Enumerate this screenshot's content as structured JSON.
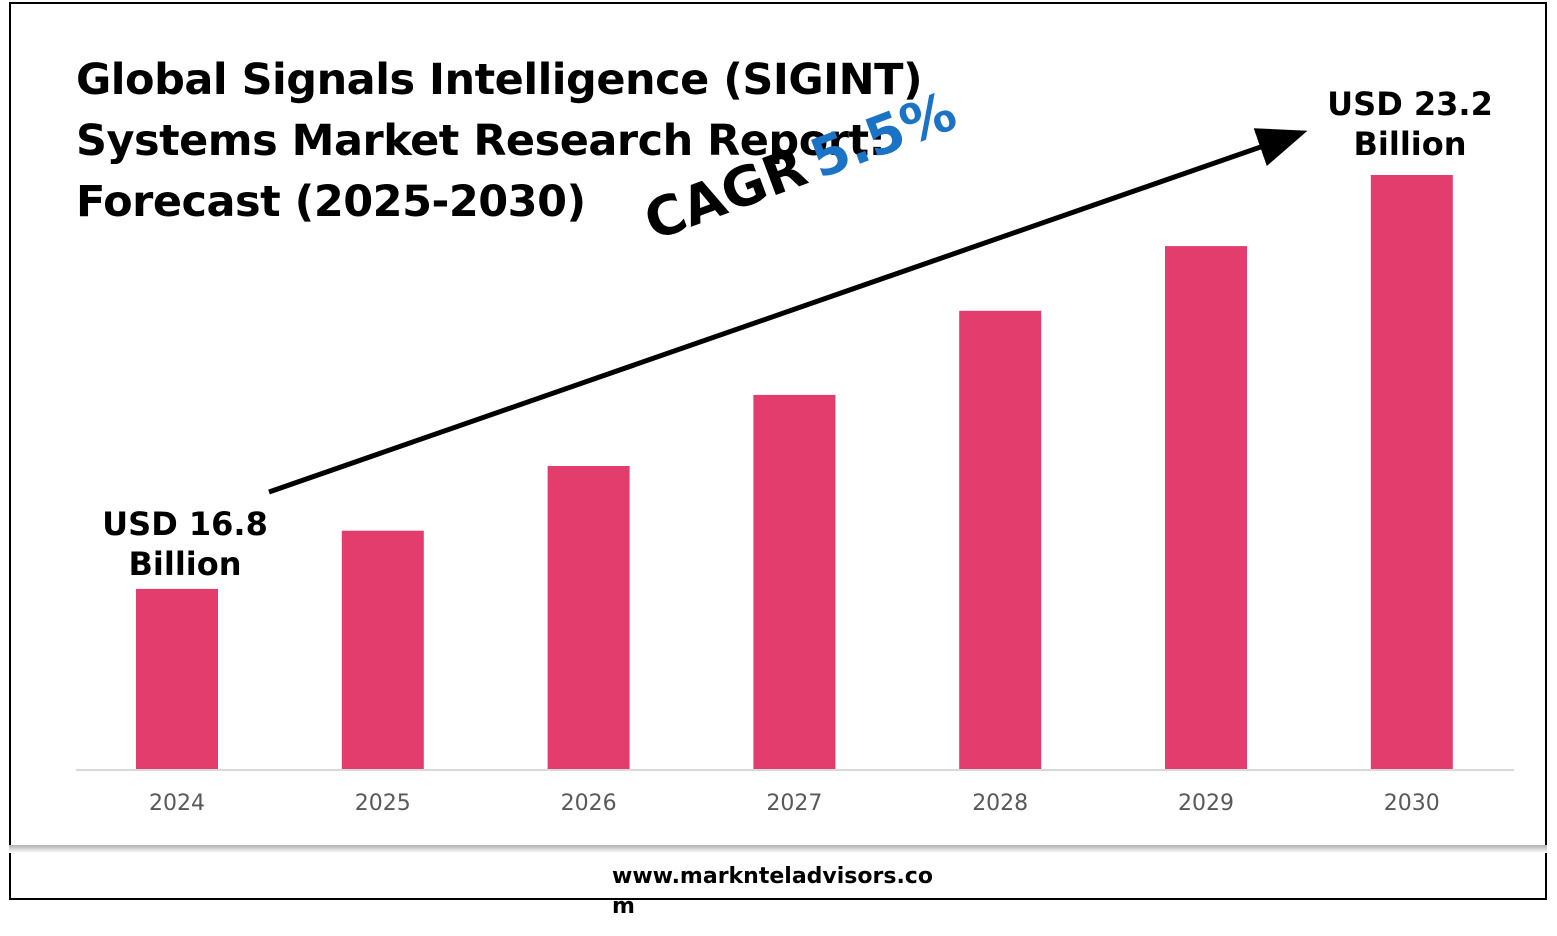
{
  "title": {
    "line1": "Global Signals Intelligence (SIGINT)",
    "line2": "Systems Market Research Report:",
    "line3": "Forecast (2025-2030)"
  },
  "callouts": {
    "start": {
      "line1": "USD 16.8",
      "line2": "Billion"
    },
    "end": {
      "line1": "USD 23.2",
      "line2": "Billion"
    }
  },
  "cagr": {
    "label": "CAGR",
    "value": "5.5%",
    "value_color": "#1a73c5"
  },
  "footer": {
    "website": "www.marknteladvisors.com"
  },
  "chart_data": {
    "type": "bar",
    "categories": [
      "2024",
      "2025",
      "2026",
      "2027",
      "2028",
      "2029",
      "2030"
    ],
    "values": [
      16.8,
      17.7,
      18.7,
      19.8,
      21.1,
      22.1,
      23.2
    ],
    "ylim": [
      14.0,
      23.2
    ],
    "bar_color": "#e33d6e",
    "grid": false,
    "legend": "none"
  }
}
